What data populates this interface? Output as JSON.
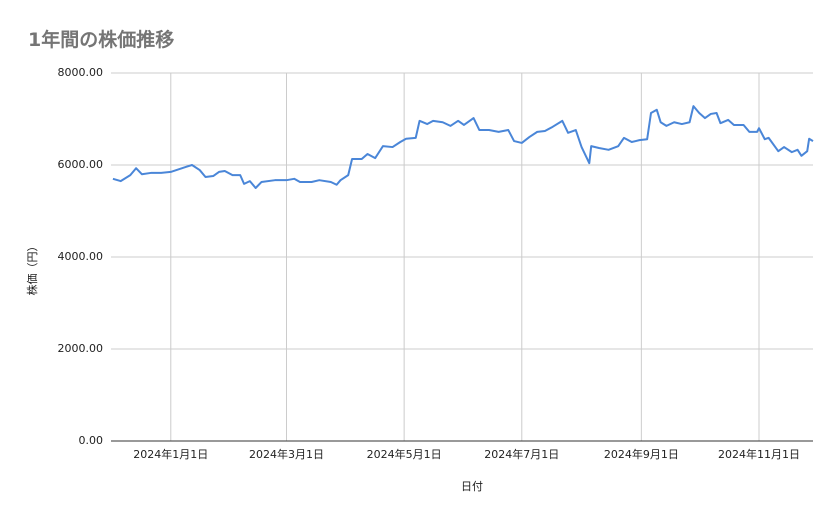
{
  "chart_data": {
    "type": "line",
    "title": "1年間の株価推移",
    "x_label": "日付",
    "y_label": "株価（円）",
    "color": "#4a86d8",
    "grid": true,
    "xlim": [
      "2023-12-01",
      "2024-11-29"
    ],
    "xticks": [
      {
        "value": "2024-01-01",
        "label": "2024年1月1日"
      },
      {
        "value": "2024-03-01",
        "label": "2024年3月1日"
      },
      {
        "value": "2024-05-01",
        "label": "2024年5月1日"
      },
      {
        "value": "2024-07-01",
        "label": "2024年7月1日"
      },
      {
        "value": "2024-09-01",
        "label": "2024年9月1日"
      },
      {
        "value": "2024-11-01",
        "label": "2024年11月1日"
      }
    ],
    "ylim": [
      0,
      8000
    ],
    "yticks": [
      {
        "value": 0,
        "label": "0.00"
      },
      {
        "value": 2000,
        "label": "2000.00"
      },
      {
        "value": 4000,
        "label": "4000.00"
      },
      {
        "value": 6000,
        "label": "6000.00"
      },
      {
        "value": 8000,
        "label": "8000.00"
      }
    ],
    "x": [
      "2023-12-02",
      "2023-12-06",
      "2023-12-11",
      "2023-12-14",
      "2023-12-17",
      "2023-12-22",
      "2023-12-27",
      "2024-01-01",
      "2024-01-09",
      "2024-01-12",
      "2024-01-16",
      "2024-01-19",
      "2024-01-23",
      "2024-01-26",
      "2024-01-29",
      "2024-02-02",
      "2024-02-06",
      "2024-02-08",
      "2024-02-11",
      "2024-02-14",
      "2024-02-17",
      "2024-02-24",
      "2024-03-01",
      "2024-03-05",
      "2024-03-08",
      "2024-03-14",
      "2024-03-18",
      "2024-03-24",
      "2024-03-27",
      "2024-03-29",
      "2024-04-02",
      "2024-04-04",
      "2024-04-09",
      "2024-04-12",
      "2024-04-16",
      "2024-04-20",
      "2024-04-25",
      "2024-04-29",
      "2024-05-02",
      "2024-05-07",
      "2024-05-09",
      "2024-05-13",
      "2024-05-16",
      "2024-05-21",
      "2024-05-25",
      "2024-05-29",
      "2024-06-01",
      "2024-06-06",
      "2024-06-09",
      "2024-06-14",
      "2024-06-19",
      "2024-06-24",
      "2024-06-27",
      "2024-07-01",
      "2024-07-05",
      "2024-07-09",
      "2024-07-13",
      "2024-07-17",
      "2024-07-22",
      "2024-07-25",
      "2024-07-29",
      "2024-08-01",
      "2024-08-05",
      "2024-08-06",
      "2024-08-10",
      "2024-08-15",
      "2024-08-20",
      "2024-08-23",
      "2024-08-27",
      "2024-08-31",
      "2024-09-04",
      "2024-09-06",
      "2024-09-09",
      "2024-09-11",
      "2024-09-14",
      "2024-09-18",
      "2024-09-22",
      "2024-09-26",
      "2024-09-28",
      "2024-10-01",
      "2024-10-04",
      "2024-10-07",
      "2024-10-10",
      "2024-10-12",
      "2024-10-16",
      "2024-10-19",
      "2024-10-24",
      "2024-10-27",
      "2024-10-31",
      "2024-11-01",
      "2024-11-04",
      "2024-11-06",
      "2024-11-11",
      "2024-11-14",
      "2024-11-18",
      "2024-11-21",
      "2024-11-23",
      "2024-11-26",
      "2024-11-27",
      "2024-11-29"
    ],
    "values": [
      5700,
      5650,
      5780,
      5930,
      5800,
      5830,
      5830,
      5850,
      5960,
      6000,
      5890,
      5740,
      5760,
      5850,
      5870,
      5780,
      5780,
      5590,
      5650,
      5500,
      5630,
      5670,
      5670,
      5700,
      5630,
      5630,
      5670,
      5630,
      5570,
      5670,
      5780,
      6130,
      6130,
      6240,
      6150,
      6410,
      6390,
      6500,
      6570,
      6590,
      6960,
      6890,
      6960,
      6930,
      6850,
      6960,
      6870,
      7020,
      6760,
      6760,
      6720,
      6760,
      6520,
      6480,
      6610,
      6720,
      6740,
      6830,
      6960,
      6700,
      6760,
      6390,
      6040,
      6410,
      6370,
      6330,
      6410,
      6590,
      6500,
      6540,
      6560,
      7130,
      7200,
      6930,
      6850,
      6930,
      6890,
      6930,
      7280,
      7130,
      7020,
      7110,
      7130,
      6910,
      6980,
      6870,
      6870,
      6720,
      6720,
      6800,
      6560,
      6590,
      6300,
      6390,
      6280,
      6330,
      6200,
      6300,
      6570,
      6520
    ]
  }
}
